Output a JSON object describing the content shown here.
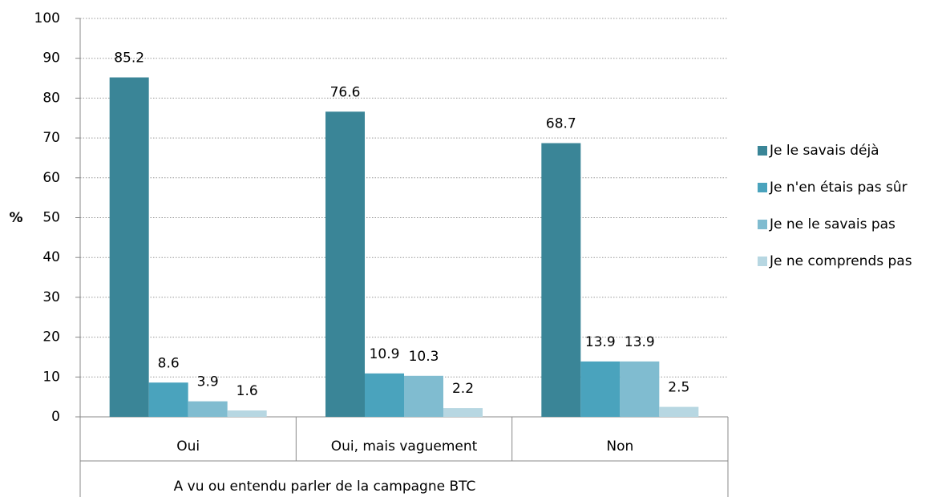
{
  "chart_data": {
    "type": "bar",
    "xlabel": "A vu ou entendu parler de la campagne BTC",
    "ylabel": "%",
    "categories": [
      "Oui",
      "Oui, mais  vaguement",
      "Non"
    ],
    "series": [
      {
        "name": "Je le savais déjà",
        "color": "#3a8597",
        "values": [
          85.2,
          76.6,
          68.7
        ]
      },
      {
        "name": "Je n'en étais pas sûr",
        "color": "#4aa3bd",
        "values": [
          8.6,
          10.9,
          13.9
        ]
      },
      {
        "name": "Je ne le savais pas",
        "color": "#80bcd0",
        "values": [
          3.9,
          10.3,
          13.9
        ]
      },
      {
        "name": "Je ne comprends pas",
        "color": "#b7d7e2",
        "values": [
          1.6,
          2.2,
          2.5
        ]
      }
    ],
    "ylim": [
      0,
      100
    ],
    "yticks": [
      0,
      10,
      20,
      30,
      40,
      50,
      60,
      70,
      80,
      90,
      100
    ],
    "grid": true,
    "legend": "right"
  }
}
